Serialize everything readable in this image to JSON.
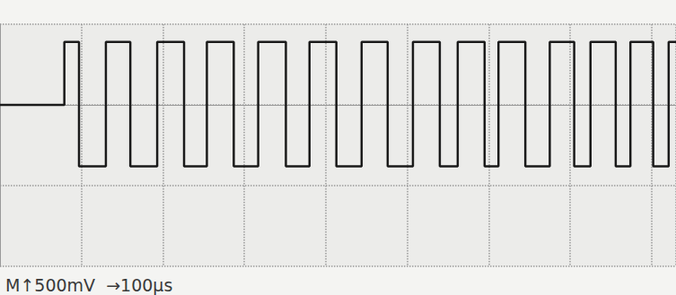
{
  "chart_data": {
    "type": "line",
    "annotation": "M↑500mV  →100μs",
    "x": [
      0,
      79,
      79,
      97,
      97,
      130,
      130,
      160,
      160,
      193,
      193,
      226,
      226,
      254,
      254,
      287,
      287,
      317,
      317,
      351,
      351,
      380,
      380,
      413,
      413,
      444,
      444,
      476,
      476,
      507,
      507,
      540,
      540,
      562,
      562,
      595,
      595,
      612,
      612,
      645,
      645,
      675,
      675,
      705,
      705,
      725,
      725,
      756,
      756,
      774,
      774,
      802,
      802,
      821,
      821,
      830
    ],
    "values": [
      0,
      0,
      390,
      390,
      -380,
      -380,
      390,
      390,
      -380,
      -380,
      390,
      390,
      -380,
      -380,
      390,
      390,
      -380,
      -380,
      390,
      390,
      -380,
      -380,
      390,
      390,
      -380,
      -380,
      390,
      390,
      -380,
      -380,
      390,
      390,
      -380,
      -380,
      390,
      390,
      -380,
      -380,
      390,
      390,
      -380,
      -380,
      390,
      390,
      -380,
      -380,
      390,
      390,
      -380,
      -380,
      390,
      390,
      -380,
      -380,
      390,
      390
    ],
    "color": "#1a1a1a",
    "xlim": [
      0,
      830
    ],
    "xticks": [
      0,
      100,
      200,
      300,
      400,
      500,
      600,
      700,
      800
    ],
    "ylim": [
      -1000,
      500
    ],
    "yticks": [
      -1000,
      -500,
      0,
      500
    ],
    "grid": true,
    "tick_labels": false,
    "line_style": "solid"
  }
}
